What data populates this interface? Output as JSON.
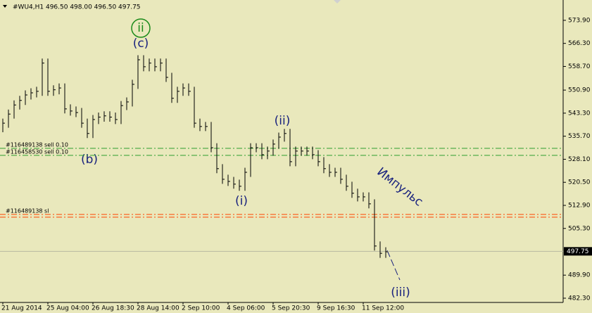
{
  "chart_data": {
    "type": "ohlc",
    "header": "#WU4,H1  496.50 498.00 496.50 497.75",
    "categories": [
      "21 Aug 2014",
      null,
      null,
      null,
      null,
      null,
      null,
      null,
      "25 Aug 04:00",
      null,
      null,
      null,
      null,
      null,
      null,
      null,
      "26 Aug 18:30",
      null,
      null,
      null,
      null,
      null,
      null,
      null,
      "28 Aug 14:00",
      null,
      null,
      null,
      null,
      null,
      null,
      null,
      "2 Sep 10:00",
      null,
      null,
      null,
      null,
      null,
      null,
      null,
      "4 Sep 06:00",
      null,
      null,
      null,
      null,
      null,
      null,
      null,
      "5 Sep 20:30",
      null,
      null,
      null,
      null,
      null,
      null,
      null,
      "9 Sep 16:30",
      null,
      null,
      null,
      null,
      null,
      null,
      null,
      "11 Sep 12:00",
      null,
      null,
      null,
      null
    ],
    "high": [
      541.5,
      544.5,
      547.5,
      549.0,
      550.8,
      551.5,
      552.0,
      561.3,
      561.3,
      552.5,
      553.1,
      553.1,
      546.2,
      545.5,
      545.0,
      541.5,
      542.7,
      543.5,
      543.9,
      543.9,
      543.5,
      547.3,
      548.5,
      554.3,
      562.4,
      562.4,
      561.3,
      561.3,
      561.3,
      561.3,
      556.6,
      552.0,
      553.1,
      553.1,
      552.0,
      541.5,
      540.4,
      540.4,
      533.4,
      526.5,
      523.0,
      522.3,
      521.4,
      525.3,
      533.4,
      533.4,
      533.4,
      532.3,
      534.6,
      536.9,
      538.1,
      538.1,
      532.3,
      532.3,
      532.3,
      532.3,
      531.1,
      528.8,
      526.5,
      525.3,
      525.3,
      523.0,
      520.7,
      518.4,
      517.2,
      517.2,
      514.9,
      501.0,
      499.1
    ],
    "low": [
      537.0,
      538.5,
      541.5,
      544.5,
      546.0,
      547.8,
      548.5,
      549.0,
      549.0,
      549.0,
      549.5,
      543.2,
      542.5,
      542.0,
      538.5,
      535.1,
      535.1,
      539.7,
      540.5,
      540.5,
      539.7,
      539.7,
      544.3,
      545.5,
      551.3,
      557.1,
      557.1,
      557.1,
      557.1,
      553.6,
      546.7,
      546.7,
      549.0,
      549.0,
      538.5,
      537.4,
      537.4,
      530.4,
      523.5,
      520.0,
      519.3,
      518.4,
      517.7,
      517.7,
      522.3,
      530.4,
      528.1,
      528.1,
      529.3,
      531.6,
      533.9,
      525.8,
      525.8,
      529.3,
      529.3,
      528.1,
      525.8,
      523.5,
      522.3,
      522.3,
      520.0,
      517.7,
      515.4,
      514.2,
      514.2,
      511.9,
      498.0,
      495.6,
      495.6
    ],
    "close": [
      540.0,
      543.0,
      546.0,
      547.5,
      549.3,
      550.0,
      550.5,
      559.8,
      550.5,
      551.0,
      551.6,
      544.7,
      544.0,
      543.5,
      540.0,
      536.6,
      541.2,
      542.0,
      542.4,
      542.0,
      541.2,
      545.8,
      547.0,
      552.8,
      560.9,
      558.6,
      559.8,
      558.6,
      559.8,
      555.1,
      548.2,
      550.5,
      551.6,
      550.5,
      540.0,
      538.9,
      538.9,
      531.9,
      525.0,
      521.5,
      520.8,
      519.9,
      519.2,
      523.8,
      531.9,
      531.9,
      529.6,
      530.8,
      533.1,
      535.4,
      536.6,
      527.3,
      530.8,
      530.8,
      530.8,
      529.6,
      527.3,
      525.0,
      523.8,
      523.8,
      521.5,
      519.2,
      516.9,
      515.7,
      515.7,
      513.4,
      499.5,
      497.1,
      497.6
    ],
    "color": "#000000",
    "ylim": [
      480.9,
      580.6
    ],
    "yticks": [
      {
        "value": 573.9,
        "label": "573.90"
      },
      {
        "value": 566.3,
        "label": "566.30"
      },
      {
        "value": 558.7,
        "label": "558.70"
      },
      {
        "value": 550.9,
        "label": "550.90"
      },
      {
        "value": 543.3,
        "label": "543.30"
      },
      {
        "value": 535.7,
        "label": "535.70"
      },
      {
        "value": 528.1,
        "label": "528.10"
      },
      {
        "value": 520.5,
        "label": "520.50"
      },
      {
        "value": 512.9,
        "label": "512.90"
      },
      {
        "value": 505.3,
        "label": "505.30"
      },
      {
        "value": 489.9,
        "label": "489.90"
      },
      {
        "value": 482.3,
        "label": "482.30"
      }
    ],
    "last_price": 497.75,
    "level_lines": [
      {
        "label": "#116489138 sell 0.10",
        "value": 531.7,
        "color": "#2e9e2e"
      },
      {
        "label": "#116458530 sell 0.10",
        "value": 529.4,
        "color": "#2e9e2e"
      },
      {
        "label": "#116489138 sl",
        "value": 509.9,
        "color": "#ff4500"
      },
      {
        "value": 509.0,
        "color": "#ff4500"
      }
    ],
    "annotations": [
      "ii",
      "(c)",
      "(b)",
      "(ii)",
      "(i)",
      "(iii)",
      "Импульс"
    ]
  }
}
